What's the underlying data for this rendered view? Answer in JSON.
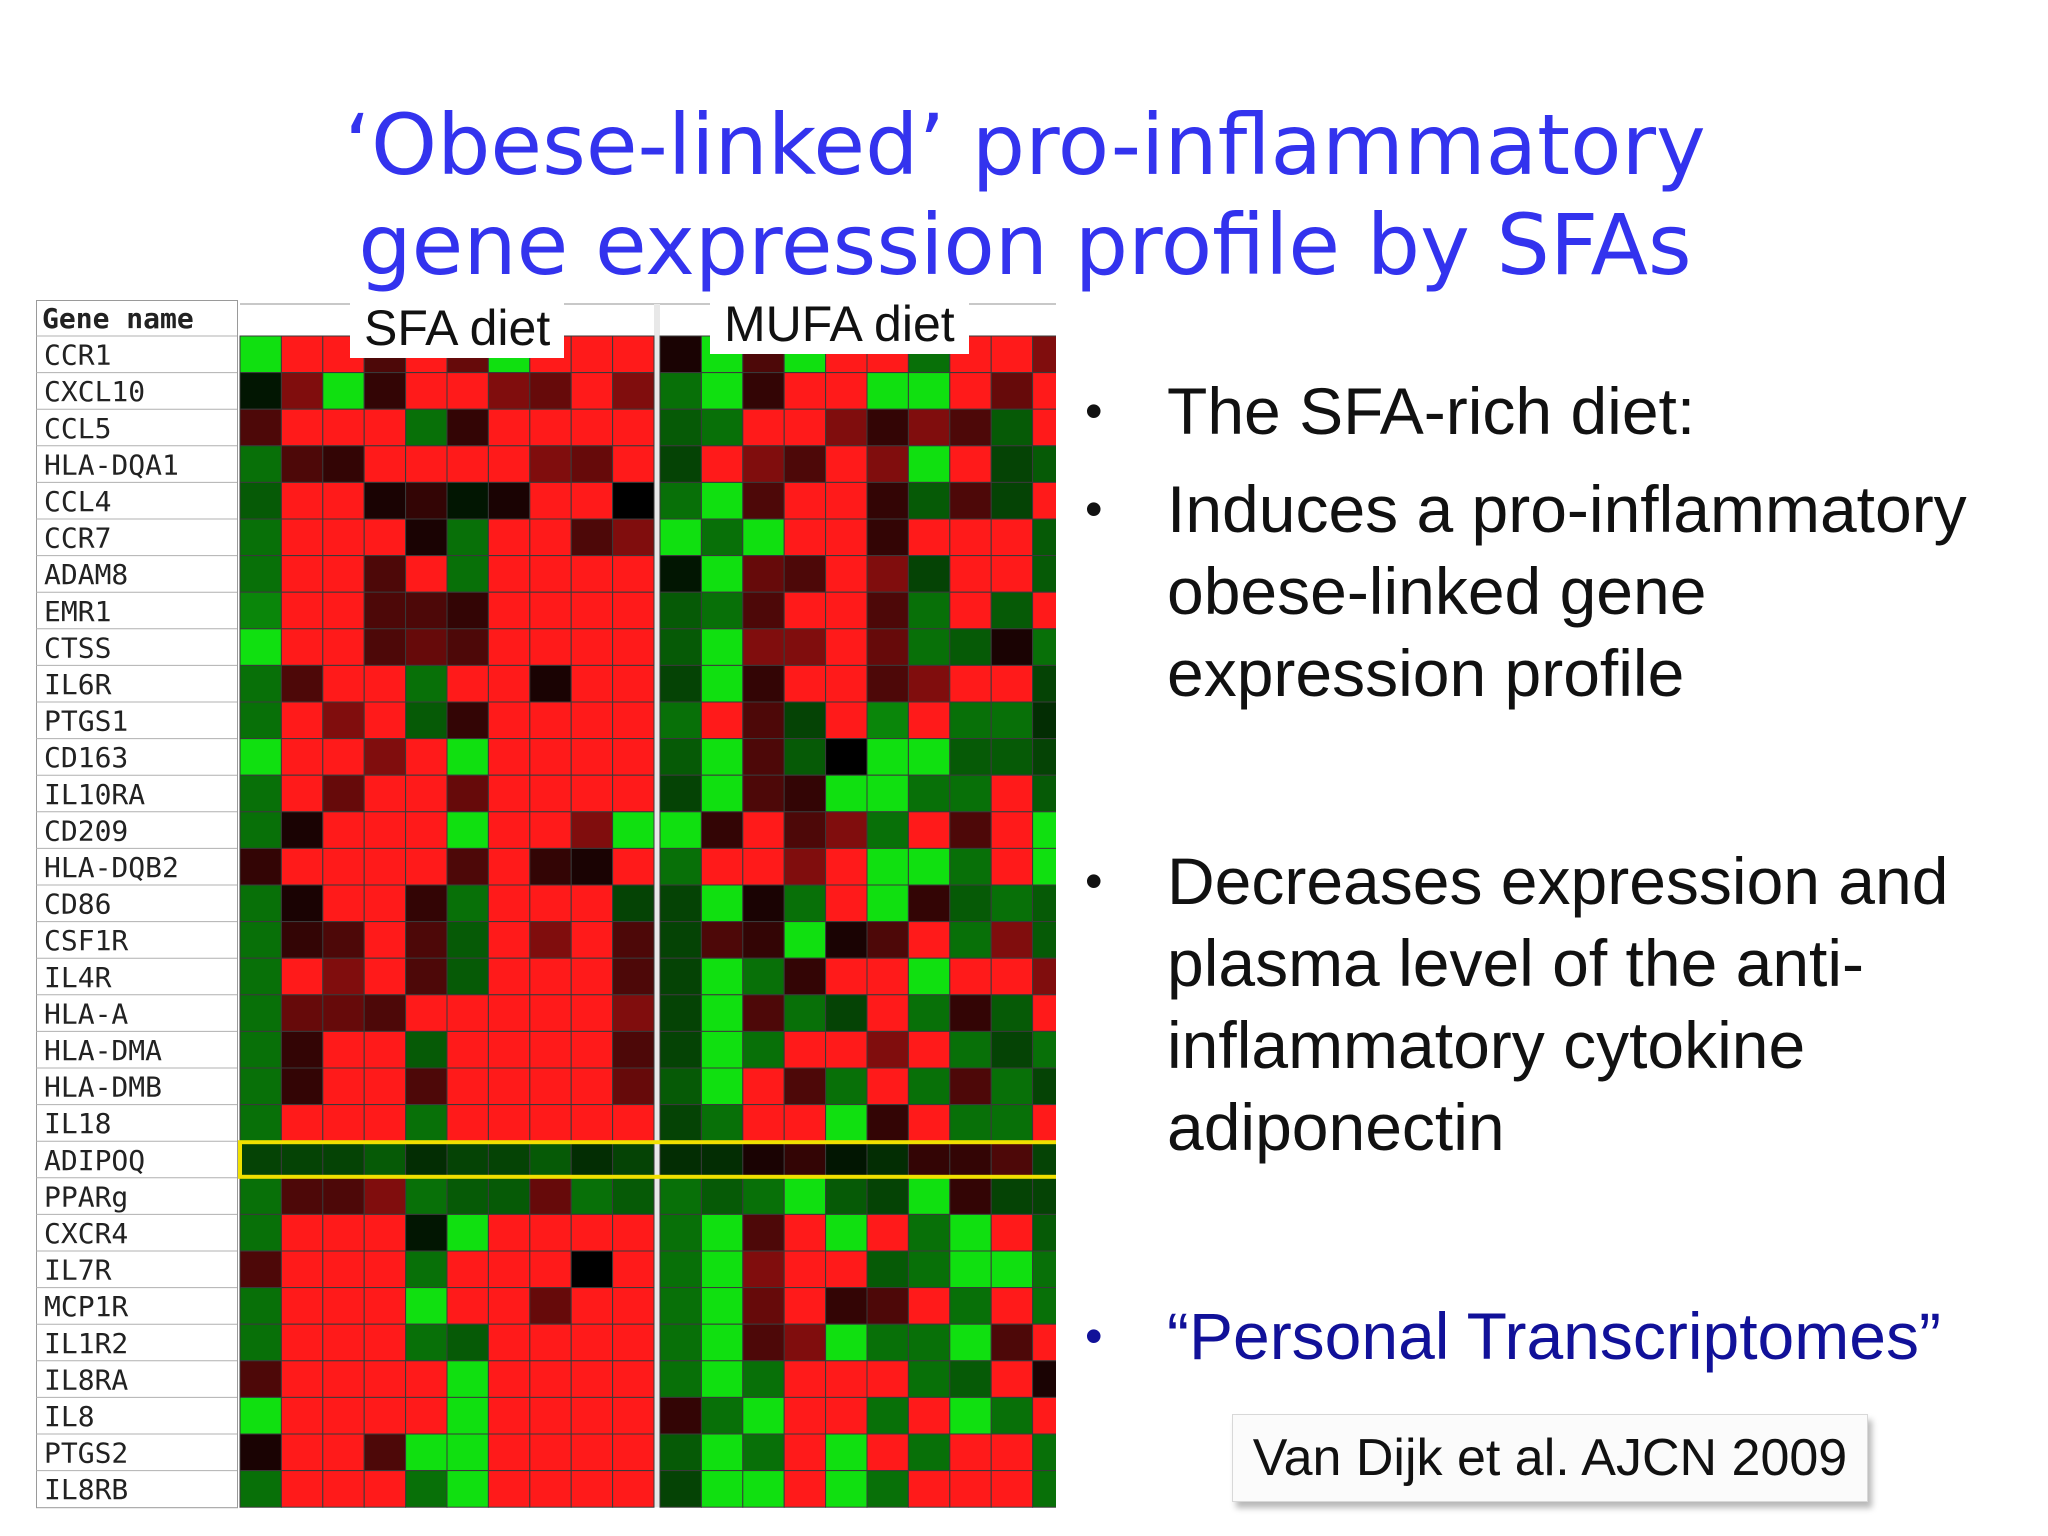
{
  "slide": {
    "title_line1": "‘Obese-linked’ pro-inflammatory",
    "title_line2": "gene expression profile by SFAs",
    "citation": "Van Dijk et al. AJCN 2009"
  },
  "bullets": [
    {
      "marker": "•",
      "text": "The SFA-rich diet:"
    },
    {
      "marker": "•",
      "text": "Induces a pro-inflammatory obese-linked gene expression profile"
    },
    {
      "marker": "•",
      "text": "Decreases expression and plasma level of the anti-inflammatory cytokine adiponectin"
    },
    {
      "marker": "•",
      "text": "“Personal Transcriptomes”"
    }
  ],
  "chart_data": {
    "type": "heatmap",
    "row_header": "Gene name",
    "groups": [
      {
        "label": "SFA diet",
        "columns": 10
      },
      {
        "label": "MUFA diet",
        "columns": 10
      }
    ],
    "highlighted_row": "ADIPOQ",
    "highlight_color": "#f0e000",
    "color_scale": {
      "up": "#ff1a1a",
      "down": "#10e010",
      "neutral": "#000000"
    },
    "rows": [
      "CCR1",
      "CXCL10",
      "CCL5",
      "HLA-DQA1",
      "CCL4",
      "CCR7",
      "ADAM8",
      "EMR1",
      "CTSS",
      "IL6R",
      "PTGS1",
      "CD163",
      "IL10RA",
      "CD209",
      "HLA-DQB2",
      "CD86",
      "CSF1R",
      "IL4R",
      "HLA-A",
      "HLA-DMA",
      "HLA-DMB",
      "IL18",
      "ADIPOQ",
      "PPARg",
      "CXCR4",
      "IL7R",
      "MCP1R",
      "IL1R2",
      "IL8RA",
      "IL8",
      "PTGS2",
      "IL8RB"
    ],
    "values": [
      [
        -1,
        1,
        1,
        0.3,
        1,
        0.4,
        -1,
        1,
        1,
        1,
        0.1,
        -1,
        0.3,
        -1,
        1,
        1,
        -0.5,
        1,
        1,
        0.5
      ],
      [
        -0.1,
        0.5,
        -1,
        0.2,
        1,
        1,
        0.5,
        0.4,
        1,
        0.5,
        -0.5,
        -1,
        0.2,
        1,
        1,
        -1,
        -1,
        1,
        0.4,
        1
      ],
      [
        0.3,
        1,
        1,
        1,
        -0.5,
        0.2,
        1,
        1,
        1,
        1,
        -0.4,
        -0.5,
        1,
        1,
        0.5,
        0.2,
        0.5,
        0.3,
        -0.4,
        1
      ],
      [
        -0.5,
        0.3,
        0.2,
        1,
        1,
        1,
        1,
        0.5,
        0.4,
        1,
        -0.3,
        1,
        0.5,
        0.3,
        1,
        0.5,
        -1,
        1,
        -0.3,
        -0.4
      ],
      [
        -0.4,
        1,
        1,
        0.1,
        0.2,
        -0.1,
        0.1,
        1,
        1,
        0,
        -0.5,
        -1,
        0.3,
        1,
        1,
        0.2,
        -0.4,
        0.3,
        -0.3,
        1
      ],
      [
        -0.5,
        1,
        1,
        1,
        0.1,
        -0.5,
        1,
        1,
        0.3,
        0.5,
        -1,
        -0.5,
        -1,
        1,
        1,
        0.2,
        1,
        1,
        1,
        -0.4
      ],
      [
        -0.5,
        1,
        1,
        0.3,
        1,
        -0.5,
        1,
        1,
        1,
        1,
        -0.1,
        -1,
        0.4,
        0.3,
        1,
        0.5,
        -0.3,
        1,
        1,
        -0.4
      ],
      [
        -0.6,
        1,
        1,
        0.3,
        0.3,
        0.2,
        1,
        1,
        1,
        1,
        -0.4,
        -0.5,
        0.3,
        1,
        1,
        0.3,
        -0.5,
        1,
        -0.4,
        1
      ],
      [
        -1,
        1,
        1,
        0.3,
        0.4,
        0.3,
        1,
        1,
        1,
        1,
        -0.4,
        -1,
        0.5,
        0.5,
        1,
        0.4,
        -0.5,
        -0.4,
        0.1,
        -0.5
      ],
      [
        -0.5,
        0.3,
        1,
        1,
        -0.5,
        1,
        1,
        0.1,
        1,
        1,
        -0.3,
        -1,
        0.2,
        1,
        1,
        0.3,
        0.5,
        1,
        1,
        -0.3
      ],
      [
        -0.5,
        1,
        0.5,
        1,
        -0.4,
        0.2,
        1,
        1,
        1,
        1,
        -0.5,
        1,
        0.3,
        -0.3,
        1,
        -0.6,
        1,
        -0.5,
        -0.5,
        -0.2
      ],
      [
        -1,
        1,
        1,
        0.5,
        1,
        -1,
        1,
        1,
        1,
        1,
        -0.4,
        -1,
        0.3,
        -0.4,
        0,
        -1,
        -1,
        -0.4,
        -0.4,
        -0.3
      ],
      [
        -0.5,
        1,
        0.4,
        1,
        1,
        0.4,
        1,
        1,
        1,
        1,
        -0.3,
        -1,
        0.3,
        0.2,
        -1,
        -1,
        -0.5,
        -0.5,
        1,
        -0.4
      ],
      [
        -0.5,
        0.1,
        1,
        1,
        1,
        -1,
        1,
        1,
        0.5,
        -1,
        -1,
        0.2,
        1,
        0.3,
        0.5,
        -0.5,
        1,
        0.3,
        1,
        -1
      ],
      [
        0.2,
        1,
        1,
        1,
        1,
        0.3,
        1,
        0.2,
        0.1,
        1,
        -0.5,
        1,
        1,
        0.5,
        1,
        -1,
        -1,
        -0.5,
        1,
        -1
      ],
      [
        -0.5,
        0.1,
        1,
        1,
        0.2,
        -0.5,
        1,
        1,
        1,
        -0.3,
        -0.3,
        -1,
        0.1,
        -0.5,
        1,
        -1,
        0.2,
        -0.4,
        -0.5,
        -0.4
      ],
      [
        -0.5,
        0.2,
        0.3,
        1,
        0.3,
        -0.4,
        1,
        0.5,
        1,
        0.3,
        -0.3,
        0.3,
        0.2,
        -1,
        0.1,
        0.3,
        1,
        -0.5,
        0.5,
        -0.4
      ],
      [
        -0.5,
        1,
        0.5,
        1,
        0.3,
        -0.4,
        1,
        1,
        1,
        0.3,
        -0.3,
        -1,
        -0.5,
        0.2,
        1,
        1,
        -1,
        1,
        1,
        0.5
      ],
      [
        -0.5,
        0.4,
        0.4,
        0.3,
        1,
        1,
        1,
        1,
        1,
        0.5,
        -0.3,
        -1,
        0.3,
        -0.5,
        -0.3,
        1,
        -0.5,
        0.2,
        -0.4,
        1
      ],
      [
        -0.5,
        0.2,
        1,
        1,
        -0.4,
        1,
        1,
        1,
        1,
        0.3,
        -0.3,
        -1,
        -0.5,
        1,
        1,
        0.5,
        1,
        -0.5,
        -0.3,
        -0.5
      ],
      [
        -0.5,
        0.2,
        1,
        1,
        0.3,
        1,
        1,
        1,
        1,
        0.4,
        -0.4,
        -1,
        1,
        0.3,
        -0.5,
        1,
        -0.5,
        0.3,
        -0.5,
        -0.3
      ],
      [
        -0.5,
        1,
        1,
        1,
        -0.5,
        1,
        1,
        1,
        1,
        1,
        -0.3,
        -0.5,
        1,
        1,
        -1,
        0.2,
        1,
        -0.5,
        -0.5,
        1
      ],
      [
        -0.3,
        -0.3,
        -0.3,
        -0.4,
        -0.2,
        -0.3,
        -0.3,
        -0.4,
        -0.2,
        -0.3,
        -0.2,
        -0.2,
        0.1,
        0.2,
        -0.1,
        -0.2,
        0.2,
        0.2,
        0.3,
        -0.3
      ],
      [
        -0.5,
        0.3,
        0.3,
        0.5,
        -0.5,
        -0.4,
        -0.4,
        0.4,
        -0.5,
        -0.4,
        -0.5,
        -0.4,
        -0.5,
        -1,
        -0.4,
        -0.3,
        -1,
        0.2,
        -0.3,
        -0.3
      ],
      [
        -0.5,
        1,
        1,
        1,
        -0.1,
        -1,
        1,
        1,
        1,
        1,
        -0.5,
        -1,
        0.3,
        1,
        -1,
        1,
        -0.5,
        -1,
        1,
        -0.4
      ],
      [
        0.3,
        1,
        1,
        1,
        -0.5,
        1,
        1,
        1,
        0,
        1,
        -0.5,
        -1,
        0.5,
        1,
        1,
        -0.4,
        -0.5,
        -1,
        -1,
        -0.5
      ],
      [
        -0.5,
        1,
        1,
        1,
        -1,
        1,
        1,
        0.4,
        1,
        1,
        -0.5,
        -1,
        0.4,
        1,
        0.2,
        0.3,
        1,
        -0.5,
        1,
        -0.5
      ],
      [
        -0.5,
        1,
        1,
        1,
        -0.5,
        -0.4,
        1,
        1,
        1,
        1,
        -0.5,
        -1,
        0.3,
        0.5,
        -1,
        -0.5,
        -0.5,
        -1,
        0.3,
        1
      ],
      [
        0.3,
        1,
        1,
        1,
        1,
        -1,
        1,
        1,
        1,
        1,
        -0.5,
        -1,
        -0.5,
        1,
        1,
        1,
        -0.5,
        -0.4,
        1,
        0.1
      ],
      [
        -1,
        1,
        1,
        1,
        1,
        -1,
        1,
        1,
        1,
        1,
        0.2,
        -0.5,
        -1,
        1,
        1,
        -0.5,
        1,
        -1,
        -0.5,
        1
      ],
      [
        0.1,
        1,
        1,
        0.3,
        -1,
        -1,
        1,
        1,
        1,
        1,
        -0.4,
        -1,
        -0.5,
        1,
        -1,
        1,
        -0.5,
        1,
        1,
        -0.5
      ],
      [
        -0.5,
        1,
        1,
        1,
        -0.5,
        -1,
        1,
        1,
        1,
        1,
        -0.3,
        -1,
        -1,
        1,
        -1,
        -0.5,
        1,
        1,
        1,
        -0.5
      ]
    ]
  }
}
